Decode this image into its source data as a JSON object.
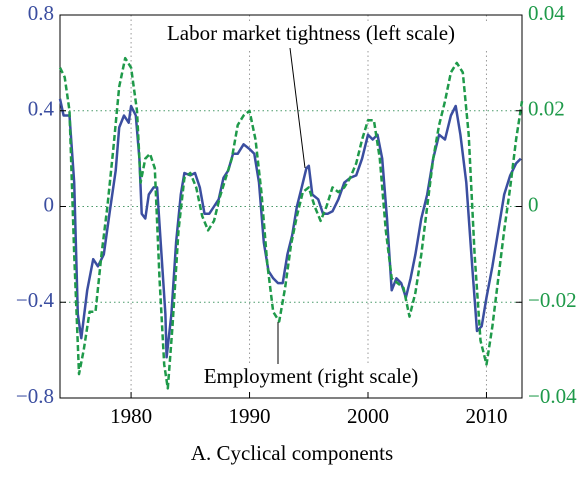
{
  "chart_data": {
    "type": "line",
    "title": "A.  Cyclical components",
    "xlim": [
      1974,
      2013
    ],
    "xticks": [
      1980,
      1990,
      2000,
      2010
    ],
    "ylim": [
      -0.8,
      0.8
    ],
    "yticks": [
      {
        "value": -0.8,
        "label": "−0.8"
      },
      {
        "value": -0.4,
        "label": "−0.4"
      },
      0,
      0.4,
      0.8
    ],
    "y2lim": [
      -0.04,
      0.04
    ],
    "y2ticks": [
      {
        "value": -0.04,
        "label": "−0.04"
      },
      {
        "value": -0.02,
        "label": "−0.02"
      },
      0,
      0.02,
      0.04
    ],
    "grid": true,
    "series": [
      {
        "name": "Labor market tightness (left scale)",
        "color": "#3b4ea0",
        "axis": "y",
        "x": [
          1974.0,
          1974.3,
          1974.8,
          1975.2,
          1975.5,
          1975.8,
          1976.3,
          1976.8,
          1977.2,
          1977.7,
          1978.2,
          1978.7,
          1979.0,
          1979.4,
          1979.8,
          1980.0,
          1980.4,
          1980.7,
          1980.9,
          1981.2,
          1981.5,
          1981.9,
          1982.2,
          1982.5,
          1982.9,
          1983.0,
          1983.4,
          1983.8,
          1984.2,
          1984.5,
          1985.0,
          1985.4,
          1985.8,
          1986.2,
          1986.6,
          1987.0,
          1987.4,
          1987.8,
          1988.2,
          1988.6,
          1989.0,
          1989.5,
          1990.0,
          1990.4,
          1990.8,
          1991.2,
          1991.6,
          1992.0,
          1992.4,
          1992.8,
          1993.2,
          1993.6,
          1994.0,
          1994.4,
          1994.8,
          1995.0,
          1995.3,
          1995.8,
          1996.2,
          1996.6,
          1997.0,
          1997.5,
          1998.0,
          1998.5,
          1999.0,
          1999.5,
          2000.0,
          2000.4,
          2000.8,
          2001.2,
          2001.6,
          2002.0,
          2002.4,
          2002.8,
          2003.2,
          2003.6,
          2004.0,
          2004.5,
          2005.0,
          2005.5,
          2006.0,
          2006.5,
          2007.0,
          2007.4,
          2007.8,
          2008.3,
          2008.8,
          2009.2,
          2009.6,
          2010.0,
          2010.5,
          2011.0,
          2011.5,
          2012.0,
          2012.5,
          2012.9
        ],
        "values": [
          0.45,
          0.38,
          0.38,
          0.1,
          -0.45,
          -0.55,
          -0.35,
          -0.22,
          -0.25,
          -0.2,
          -0.02,
          0.15,
          0.33,
          0.38,
          0.35,
          0.42,
          0.38,
          0.2,
          -0.03,
          -0.05,
          0.05,
          0.08,
          0.08,
          -0.15,
          -0.45,
          -0.63,
          -0.45,
          -0.15,
          0.05,
          0.14,
          0.13,
          0.14,
          0.08,
          -0.03,
          -0.03,
          0.0,
          0.03,
          0.12,
          0.15,
          0.22,
          0.22,
          0.26,
          0.24,
          0.22,
          0.1,
          -0.15,
          -0.27,
          -0.3,
          -0.32,
          -0.32,
          -0.2,
          -0.12,
          0.0,
          0.08,
          0.16,
          0.17,
          0.05,
          0.03,
          -0.03,
          -0.03,
          -0.02,
          0.03,
          0.1,
          0.12,
          0.13,
          0.2,
          0.3,
          0.28,
          0.3,
          0.2,
          -0.05,
          -0.35,
          -0.3,
          -0.32,
          -0.38,
          -0.3,
          -0.2,
          -0.05,
          0.05,
          0.2,
          0.3,
          0.28,
          0.38,
          0.42,
          0.3,
          0.1,
          -0.25,
          -0.52,
          -0.5,
          -0.38,
          -0.25,
          -0.1,
          0.05,
          0.13,
          0.18,
          0.2
        ]
      },
      {
        "name": "Employment (right scale)",
        "color": "#1f9a4a",
        "axis": "y2",
        "x": [
          1974.0,
          1974.4,
          1974.8,
          1975.2,
          1975.6,
          1976.0,
          1976.5,
          1977.0,
          1977.5,
          1978.0,
          1978.5,
          1979.0,
          1979.5,
          1980.0,
          1980.5,
          1980.8,
          1981.2,
          1981.6,
          1982.0,
          1982.4,
          1982.8,
          1983.1,
          1983.5,
          1984.0,
          1984.5,
          1985.0,
          1985.5,
          1986.0,
          1986.5,
          1987.0,
          1987.5,
          1988.0,
          1988.5,
          1989.0,
          1989.5,
          1990.0,
          1990.5,
          1991.0,
          1991.5,
          1992.0,
          1992.5,
          1993.0,
          1993.5,
          1994.0,
          1994.5,
          1995.0,
          1995.5,
          1996.0,
          1996.5,
          1997.0,
          1997.5,
          1998.0,
          1998.5,
          1999.0,
          1999.5,
          2000.0,
          2000.5,
          2001.0,
          2001.5,
          2002.0,
          2002.5,
          2003.0,
          2003.5,
          2004.0,
          2004.5,
          2005.0,
          2005.5,
          2006.0,
          2006.5,
          2007.0,
          2007.5,
          2008.0,
          2008.5,
          2009.0,
          2009.5,
          2010.0,
          2010.5,
          2011.0,
          2011.5,
          2012.0,
          2012.5,
          2013.0
        ],
        "values": [
          0.029,
          0.027,
          0.02,
          -0.01,
          -0.035,
          -0.03,
          -0.022,
          -0.022,
          -0.01,
          0.0,
          0.012,
          0.025,
          0.031,
          0.029,
          0.02,
          0.005,
          0.01,
          0.011,
          0.008,
          -0.015,
          -0.033,
          -0.038,
          -0.025,
          -0.005,
          0.006,
          0.007,
          0.004,
          -0.002,
          -0.005,
          -0.003,
          0.002,
          0.006,
          0.01,
          0.017,
          0.019,
          0.02,
          0.014,
          0.003,
          -0.012,
          -0.022,
          -0.024,
          -0.017,
          -0.008,
          -0.002,
          0.003,
          0.004,
          0.0,
          -0.003,
          0.0,
          0.004,
          0.003,
          0.004,
          0.006,
          0.009,
          0.014,
          0.018,
          0.018,
          0.01,
          -0.005,
          -0.015,
          -0.016,
          -0.017,
          -0.023,
          -0.018,
          -0.01,
          0.0,
          0.01,
          0.017,
          0.022,
          0.028,
          0.03,
          0.028,
          0.015,
          -0.01,
          -0.028,
          -0.033,
          -0.025,
          -0.015,
          -0.005,
          0.004,
          0.014,
          0.022
        ]
      }
    ]
  }
}
